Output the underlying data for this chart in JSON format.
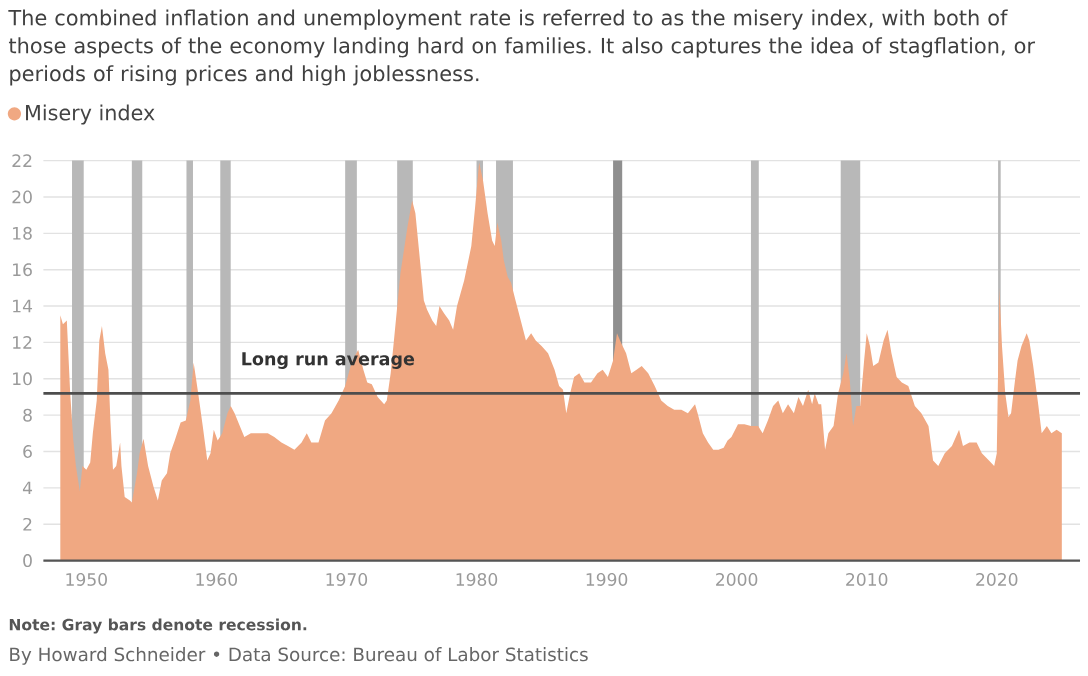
{
  "chart_data": {
    "type": "area",
    "title": "The combined inflation and unemployment rate is referred to as the misery index, with both of those aspects of the economy landing hard on families. It also captures the idea of stagflation, or periods of rising prices and high joblessness.",
    "annotations": [
      "Note: Gray bars denote recession.",
      "By Howard Schneider • Data Source: Bureau of Labor Statistics"
    ],
    "x": [
      1948.0,
      1948.2,
      1948.5,
      1948.76,
      1949.0,
      1949.2,
      1949.5,
      1949.7,
      1950.0,
      1950.3,
      1950.5,
      1950.8,
      1951.0,
      1951.2,
      1951.45,
      1951.7,
      1951.85,
      1952.05,
      1952.3,
      1952.6,
      1952.7,
      1952.95,
      1953.35,
      1953.5,
      1953.9,
      1954.1,
      1954.4,
      1954.75,
      1955.15,
      1955.5,
      1955.8,
      1956.2,
      1956.45,
      1956.8,
      1957.25,
      1957.65,
      1958.0,
      1958.25,
      1958.6,
      1958.95,
      1959.3,
      1959.55,
      1959.8,
      1960.1,
      1960.45,
      1960.85,
      1961.1,
      1961.4,
      1961.8,
      1962.15,
      1962.65,
      1963.45,
      1963.95,
      1964.45,
      1965.0,
      1965.5,
      1966.0,
      1966.55,
      1966.95,
      1967.3,
      1967.85,
      1968.35,
      1968.85,
      1969.4,
      1969.9,
      1970.4,
      1970.9,
      1971.3,
      1971.6,
      1971.95,
      1972.4,
      1972.9,
      1973.1,
      1973.4,
      1973.65,
      1974.15,
      1974.7,
      1975.05,
      1975.3,
      1975.6,
      1975.95,
      1976.2,
      1976.6,
      1976.9,
      1977.15,
      1977.5,
      1977.9,
      1978.2,
      1978.5,
      1979.05,
      1979.6,
      1979.9,
      1980.2,
      1980.5,
      1980.85,
      1981.2,
      1981.4,
      1981.6,
      1981.9,
      1982.1,
      1982.4,
      1982.65,
      1983.0,
      1983.4,
      1983.8,
      1984.2,
      1984.55,
      1985.0,
      1985.5,
      1986.0,
      1986.35,
      1986.65,
      1986.9,
      1987.2,
      1987.5,
      1987.9,
      1988.3,
      1988.8,
      1989.3,
      1989.7,
      1990.1,
      1990.5,
      1990.8,
      1991.1,
      1991.5,
      1991.9,
      1992.3,
      1992.7,
      1993.2,
      1993.7,
      1994.2,
      1994.7,
      1995.2,
      1995.75,
      1996.25,
      1996.8,
      1997.0,
      1997.4,
      1997.8,
      1998.2,
      1998.6,
      1999.0,
      1999.3,
      1999.6,
      2000.1,
      2000.6,
      2001.1,
      2001.65,
      2002.0,
      2002.4,
      2002.8,
      2003.2,
      2003.55,
      2003.95,
      2004.4,
      2004.75,
      2005.1,
      2005.5,
      2005.8,
      2006.0,
      2006.3,
      2006.5,
      2006.8,
      2007.05,
      2007.45,
      2007.8,
      2008.2,
      2008.45,
      2008.7,
      2008.95,
      2009.2,
      2009.5,
      2009.8,
      2010.0,
      2010.25,
      2010.5,
      2010.9,
      2011.3,
      2011.6,
      2011.9,
      2012.3,
      2012.7,
      2013.2,
      2013.7,
      2014.2,
      2014.75,
      2015.1,
      2015.5,
      2016.0,
      2016.55,
      2017.1,
      2017.4,
      2017.9,
      2018.45,
      2018.85,
      2019.4,
      2019.8,
      2020.0,
      2020.2,
      2020.4,
      2020.65,
      2020.9,
      2021.1,
      2021.4,
      2021.6,
      2021.9,
      2022.3,
      2022.5,
      2022.8,
      2023.2,
      2023.45,
      2023.85,
      2024.2,
      2024.6,
      2025.0
    ],
    "series": [
      {
        "name": "Misery index",
        "color": "#f0a882",
        "values": [
          13.5,
          13.0,
          13.2,
          9.2,
          6.6,
          5.2,
          3.8,
          5.2,
          5.0,
          5.4,
          7.0,
          8.8,
          12.1,
          12.9,
          11.4,
          10.5,
          7.7,
          5.0,
          5.2,
          6.5,
          5.2,
          3.5,
          3.3,
          3.2,
          4.8,
          5.9,
          6.7,
          5.2,
          4.1,
          3.3,
          4.4,
          4.8,
          5.9,
          6.6,
          7.6,
          7.7,
          8.8,
          10.9,
          9.2,
          7.4,
          5.5,
          5.9,
          7.2,
          6.6,
          7.0,
          8.1,
          8.5,
          8.1,
          7.4,
          6.8,
          7.0,
          7.0,
          7.0,
          6.8,
          6.5,
          6.3,
          6.1,
          6.5,
          7.0,
          6.5,
          6.5,
          7.7,
          8.1,
          8.8,
          9.6,
          10.9,
          11.6,
          10.5,
          9.8,
          9.7,
          9.0,
          8.6,
          8.8,
          10.3,
          12.1,
          15.8,
          18.4,
          19.8,
          19.1,
          16.9,
          14.3,
          13.8,
          13.2,
          12.9,
          14.0,
          13.6,
          13.2,
          12.7,
          14.0,
          15.4,
          17.3,
          19.5,
          21.9,
          20.9,
          19.1,
          17.6,
          17.3,
          18.6,
          17.6,
          16.5,
          15.6,
          15.3,
          14.3,
          13.2,
          12.1,
          12.5,
          12.1,
          11.8,
          11.4,
          10.5,
          9.6,
          9.4,
          8.1,
          9.2,
          10.1,
          10.3,
          9.8,
          9.8,
          10.3,
          10.5,
          10.1,
          11.0,
          12.5,
          12.0,
          11.4,
          10.3,
          10.5,
          10.7,
          10.3,
          9.6,
          8.8,
          8.5,
          8.3,
          8.3,
          8.1,
          8.6,
          8.1,
          7.0,
          6.5,
          6.1,
          6.1,
          6.2,
          6.6,
          6.8,
          7.5,
          7.5,
          7.4,
          7.4,
          7.0,
          7.7,
          8.5,
          8.8,
          8.1,
          8.6,
          8.1,
          9.0,
          8.5,
          9.4,
          8.6,
          9.2,
          8.6,
          8.6,
          6.1,
          7.0,
          7.4,
          9.2,
          10.3,
          11.4,
          9.9,
          7.4,
          8.5,
          8.5,
          11.0,
          12.5,
          11.8,
          10.7,
          10.9,
          12.1,
          12.7,
          11.4,
          10.1,
          9.8,
          9.6,
          8.5,
          8.1,
          7.4,
          5.5,
          5.2,
          5.9,
          6.3,
          7.2,
          6.3,
          6.5,
          6.5,
          5.9,
          5.5,
          5.2,
          5.9,
          15.0,
          11.8,
          9.2,
          7.9,
          8.1,
          9.9,
          11.0,
          11.8,
          12.5,
          12.1,
          10.7,
          8.5,
          7.0,
          7.4,
          7.0,
          7.2,
          7.0
        ]
      }
    ],
    "xlim": [
      1946.7,
      2026.4
    ],
    "ylim": [
      0,
      22
    ],
    "xticks": [
      1950,
      1960,
      1970,
      1980,
      1990,
      2000,
      2010,
      2020
    ],
    "yticks": [
      0,
      2,
      4,
      6,
      8,
      10,
      12,
      14,
      16,
      18,
      20,
      22
    ],
    "grid": "y",
    "legend": "top left",
    "ref_lines": [
      {
        "axis": "y",
        "value": 9.2,
        "label": "Long run average",
        "color": "#4d4d4d"
      }
    ],
    "bands": [
      {
        "axis": "x",
        "from": 1948.9,
        "to": 1949.8,
        "color": "#b8b8b8"
      },
      {
        "axis": "x",
        "from": 1953.5,
        "to": 1954.3,
        "color": "#b8b8b8"
      },
      {
        "axis": "x",
        "from": 1957.7,
        "to": 1958.2,
        "color": "#b8b8b8"
      },
      {
        "axis": "x",
        "from": 1960.3,
        "to": 1961.1,
        "color": "#b8b8b8"
      },
      {
        "axis": "x",
        "from": 1969.9,
        "to": 1970.8,
        "color": "#b8b8b8"
      },
      {
        "axis": "x",
        "from": 1973.9,
        "to": 1975.1,
        "color": "#b8b8b8"
      },
      {
        "axis": "x",
        "from": 1980.0,
        "to": 1980.5,
        "color": "#b8b8b8"
      },
      {
        "axis": "x",
        "from": 1981.5,
        "to": 1982.8,
        "color": "#b8b8b8"
      },
      {
        "axis": "x",
        "from": 1990.5,
        "to": 1991.2,
        "color": "#8f8f8f"
      },
      {
        "axis": "x",
        "from": 2001.1,
        "to": 2001.7,
        "color": "#b8b8b8"
      },
      {
        "axis": "x",
        "from": 2008.0,
        "to": 2009.5,
        "color": "#b8b8b8"
      },
      {
        "axis": "x",
        "from": 2020.1,
        "to": 2020.3,
        "color": "#b8b8b8"
      }
    ]
  }
}
